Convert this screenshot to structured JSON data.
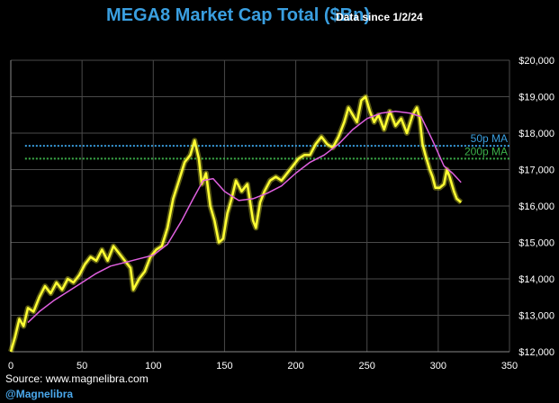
{
  "title": "MEGA8 Market Cap Total ($Bn)",
  "subtitle": "Data since 1/2/24",
  "source": "Source: www.magnelibra.com",
  "handle": "@Magnelibra",
  "chart_data": {
    "type": "line",
    "xlim": [
      0,
      350
    ],
    "ylim": [
      12000,
      20000
    ],
    "x_ticks": [
      0,
      50,
      100,
      150,
      200,
      250,
      300,
      350
    ],
    "y_ticks": [
      12000,
      13000,
      14000,
      15000,
      16000,
      17000,
      18000,
      19000,
      20000
    ],
    "x_tick_labels": [
      "0",
      "50",
      "100",
      "150",
      "200",
      "250",
      "300",
      "350"
    ],
    "y_tick_labels": [
      "$12,000",
      "$13,000",
      "$14,000",
      "$15,000",
      "$16,000",
      "$17,000",
      "$18,000",
      "$19,000",
      "$20,000"
    ],
    "grid": true,
    "series": [
      {
        "color": "#ffff33",
        "points": [
          [
            0,
            12000
          ],
          [
            3,
            12400
          ],
          [
            6,
            12900
          ],
          [
            9,
            12700
          ],
          [
            12,
            13200
          ],
          [
            16,
            13100
          ],
          [
            20,
            13500
          ],
          [
            24,
            13800
          ],
          [
            28,
            13600
          ],
          [
            32,
            13900
          ],
          [
            36,
            13700
          ],
          [
            40,
            14000
          ],
          [
            44,
            13900
          ],
          [
            48,
            14100
          ],
          [
            52,
            14400
          ],
          [
            56,
            14600
          ],
          [
            60,
            14500
          ],
          [
            64,
            14800
          ],
          [
            68,
            14500
          ],
          [
            72,
            14900
          ],
          [
            76,
            14700
          ],
          [
            80,
            14500
          ],
          [
            84,
            14300
          ],
          [
            86,
            13700
          ],
          [
            90,
            14000
          ],
          [
            94,
            14200
          ],
          [
            98,
            14600
          ],
          [
            102,
            14800
          ],
          [
            106,
            14900
          ],
          [
            110,
            15400
          ],
          [
            114,
            16200
          ],
          [
            118,
            16700
          ],
          [
            122,
            17200
          ],
          [
            126,
            17400
          ],
          [
            129,
            17800
          ],
          [
            132,
            17300
          ],
          [
            134,
            16600
          ],
          [
            137,
            16900
          ],
          [
            140,
            16000
          ],
          [
            143,
            15600
          ],
          [
            146,
            15000
          ],
          [
            149,
            15100
          ],
          [
            152,
            15800
          ],
          [
            155,
            16200
          ],
          [
            158,
            16700
          ],
          [
            162,
            16400
          ],
          [
            166,
            16600
          ],
          [
            170,
            15600
          ],
          [
            172,
            15400
          ],
          [
            175,
            16100
          ],
          [
            178,
            16400
          ],
          [
            182,
            16700
          ],
          [
            186,
            16800
          ],
          [
            190,
            16700
          ],
          [
            194,
            16900
          ],
          [
            198,
            17100
          ],
          [
            202,
            17300
          ],
          [
            206,
            17400
          ],
          [
            210,
            17400
          ],
          [
            214,
            17700
          ],
          [
            218,
            17900
          ],
          [
            222,
            17700
          ],
          [
            226,
            17600
          ],
          [
            230,
            17900
          ],
          [
            234,
            18300
          ],
          [
            237,
            18700
          ],
          [
            240,
            18500
          ],
          [
            243,
            18300
          ],
          [
            246,
            18900
          ],
          [
            249,
            19000
          ],
          [
            252,
            18600
          ],
          [
            255,
            18300
          ],
          [
            258,
            18500
          ],
          [
            262,
            18100
          ],
          [
            266,
            18600
          ],
          [
            270,
            18200
          ],
          [
            274,
            18400
          ],
          [
            278,
            18000
          ],
          [
            282,
            18500
          ],
          [
            285,
            18700
          ],
          [
            287,
            18400
          ],
          [
            289,
            17700
          ],
          [
            291,
            17400
          ],
          [
            294,
            17000
          ],
          [
            296,
            16800
          ],
          [
            298,
            16500
          ],
          [
            301,
            16500
          ],
          [
            304,
            16600
          ],
          [
            306,
            17000
          ],
          [
            308,
            16800
          ],
          [
            311,
            16400
          ],
          [
            313,
            16200
          ],
          [
            316,
            16100
          ]
        ]
      },
      {
        "color": "#e060e0",
        "points": [
          [
            12,
            12800
          ],
          [
            20,
            13100
          ],
          [
            30,
            13400
          ],
          [
            40,
            13650
          ],
          [
            50,
            13900
          ],
          [
            60,
            14150
          ],
          [
            70,
            14350
          ],
          [
            80,
            14450
          ],
          [
            90,
            14550
          ],
          [
            100,
            14650
          ],
          [
            110,
            14950
          ],
          [
            120,
            15600
          ],
          [
            128,
            16200
          ],
          [
            135,
            16700
          ],
          [
            142,
            16750
          ],
          [
            150,
            16400
          ],
          [
            160,
            16150
          ],
          [
            170,
            16200
          ],
          [
            180,
            16350
          ],
          [
            190,
            16550
          ],
          [
            200,
            16900
          ],
          [
            210,
            17200
          ],
          [
            220,
            17400
          ],
          [
            230,
            17700
          ],
          [
            240,
            18100
          ],
          [
            250,
            18400
          ],
          [
            260,
            18550
          ],
          [
            270,
            18600
          ],
          [
            280,
            18550
          ],
          [
            288,
            18450
          ],
          [
            296,
            17800
          ],
          [
            304,
            17100
          ],
          [
            310,
            16900
          ],
          [
            316,
            16650
          ]
        ]
      }
    ],
    "reference_lines": [
      {
        "label": "50p MA",
        "value": 17650,
        "color": "#3a9fe0"
      },
      {
        "label": "200p MA",
        "value": 17300,
        "color": "#3cb04a"
      }
    ]
  }
}
